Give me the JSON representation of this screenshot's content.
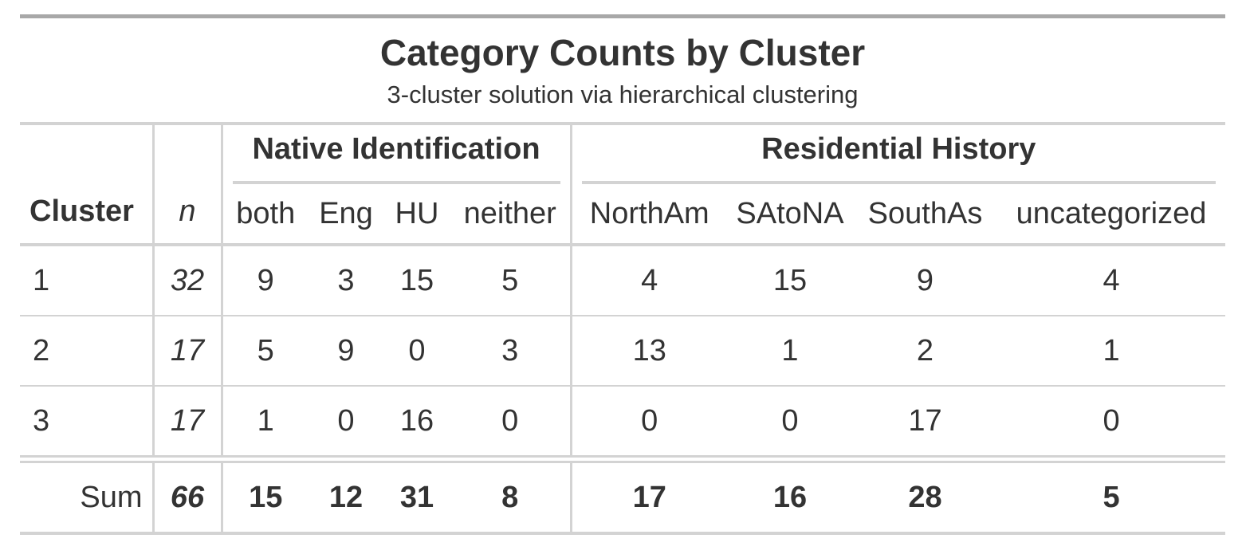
{
  "table": {
    "title": "Category Counts by Cluster",
    "subtitle": "3-cluster solution via hierarchical clustering",
    "stub_header": "Cluster",
    "n_header": "n",
    "spanners": [
      {
        "label": "Native Identification",
        "columns": [
          "both",
          "Eng",
          "HU",
          "neither"
        ]
      },
      {
        "label": "Residential History",
        "columns": [
          "NorthAm",
          "SAtoNA",
          "SouthAs",
          "uncategorized"
        ]
      }
    ],
    "rows": [
      {
        "cluster": "1",
        "n": "32",
        "values": [
          "9",
          "3",
          "15",
          "5",
          "4",
          "15",
          "9",
          "4"
        ]
      },
      {
        "cluster": "2",
        "n": "17",
        "values": [
          "5",
          "9",
          "0",
          "3",
          "13",
          "1",
          "2",
          "1"
        ]
      },
      {
        "cluster": "3",
        "n": "17",
        "values": [
          "1",
          "0",
          "16",
          "0",
          "0",
          "0",
          "17",
          "0"
        ]
      }
    ],
    "summary": {
      "label": "Sum",
      "n": "66",
      "values": [
        "15",
        "12",
        "31",
        "8",
        "17",
        "16",
        "28",
        "5"
      ]
    }
  }
}
